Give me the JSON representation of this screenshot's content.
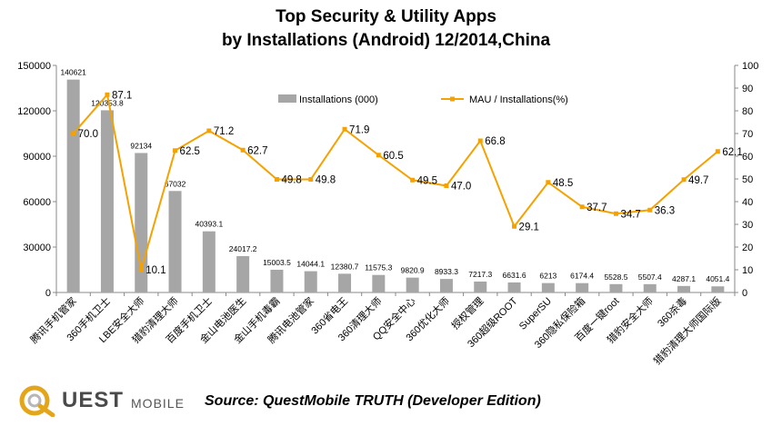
{
  "chart_data": {
    "type": "bar+line",
    "title": "Top Security & Utility Apps",
    "subtitle": "by Installations (Android)   12/2014,China",
    "categories": [
      "腾讯手机管家",
      "360手机卫士",
      "LBE安全大师",
      "猎豹清理大师",
      "百度手机卫士",
      "金山电池医生",
      "金山手机毒霸",
      "腾讯电池管家",
      "360省电王",
      "360清理大师",
      "QQ安全中心",
      "360优化大师",
      "授权管理",
      "360超级ROOT",
      "SuperSU",
      "360隐私保险箱",
      "百度一键root",
      "猎豹安全大师",
      "360杀毒",
      "猎豹清理大师国际版"
    ],
    "series": [
      {
        "name": "Installations (000)",
        "type": "bar",
        "axis": "left",
        "color": "#a6a6a6",
        "values": [
          140621,
          120353.8,
          92134,
          67032,
          40393.1,
          24017.2,
          15003.5,
          14044.1,
          12380.7,
          11575.3,
          9820.9,
          8933.3,
          7217.3,
          6631.6,
          6213,
          6174.4,
          5528.5,
          5507.4,
          4287.1,
          4051.4
        ],
        "labels": [
          "140621",
          "120353.8",
          "92134",
          "67032",
          "40393.1",
          "24017.2",
          "15003.5",
          "14044.1",
          "12380.7",
          "11575.3",
          "9820.9",
          "8933.3",
          "7217.3",
          "6631.6",
          "6213",
          "6174.4",
          "5528.5",
          "5507.4",
          "4287.1",
          "4051.4"
        ]
      },
      {
        "name": "MAU / Installations(%)",
        "type": "line",
        "axis": "right",
        "color": "#f5a200",
        "values": [
          70.0,
          87.1,
          10.1,
          62.5,
          71.2,
          62.7,
          49.8,
          49.8,
          71.9,
          60.5,
          49.5,
          47.0,
          66.8,
          29.1,
          48.5,
          37.7,
          34.7,
          36.3,
          49.7,
          62.1
        ],
        "labels": [
          "70.0",
          "87.1",
          "10.1",
          "62.5",
          "71.2",
          "62.7",
          "49.8",
          "49.8",
          "71.9",
          "60.5",
          "49.5",
          "47.0",
          "66.8",
          "29.1",
          "48.5",
          "37.7",
          "34.7",
          "36.3",
          "49.7",
          "62.1"
        ]
      }
    ],
    "y_left": {
      "min": 0,
      "max": 150000,
      "ticks": [
        "0",
        "30000",
        "60000",
        "90000",
        "120000",
        "150000"
      ]
    },
    "y_right": {
      "min": 0,
      "max": 100,
      "ticks": [
        "0",
        "10",
        "20",
        "30",
        "40",
        "50",
        "60",
        "70",
        "80",
        "90",
        "100"
      ]
    },
    "legend_position": "top-center",
    "grid": false
  },
  "logo": {
    "brand": "UEST",
    "sub": "MOBILE"
  },
  "source": "Source: QuestMobile  TRUTH (Developer Edition)"
}
